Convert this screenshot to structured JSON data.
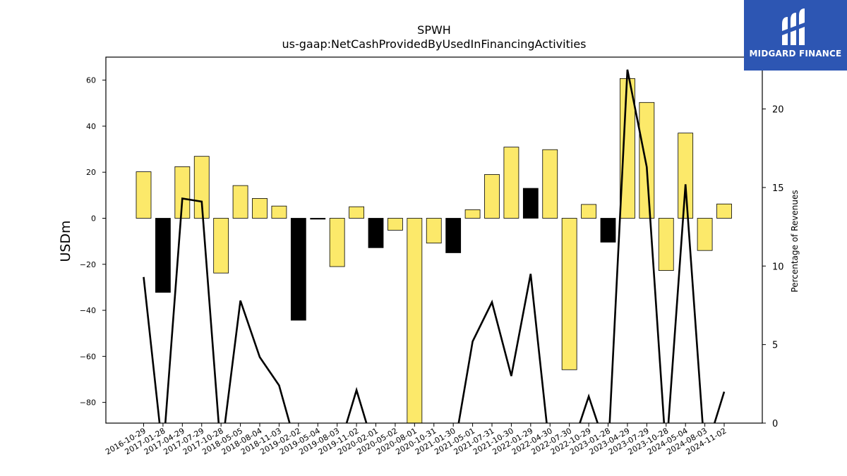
{
  "chart_data": {
    "type": "bar",
    "title": "SPWH",
    "subtitle": "us-gaap:NetCashProvidedByUsedInFinancingActivities",
    "ylabel": "USDm",
    "y2label": "Percentage of Revenues",
    "ylim": [
      -89,
      70
    ],
    "y2lim": [
      0,
      23.3
    ],
    "yticks": [
      60,
      40,
      20,
      0,
      -20,
      -40,
      -60,
      -80
    ],
    "y2ticks": [
      0,
      5,
      10,
      15,
      20
    ],
    "categories": [
      "2016-10-29",
      "2017-01-28",
      "2017-04-29",
      "2017-07-29",
      "2017-10-28",
      "2018-05-05",
      "2018-08-04",
      "2018-11-03",
      "2019-02-02",
      "2019-05-04",
      "2019-08-03",
      "2019-11-02",
      "2020-02-01",
      "2020-05-02",
      "2020-08-01",
      "2020-10-31",
      "2021-01-30",
      "2021-05-01",
      "2021-07-31",
      "2021-10-30",
      "2022-01-29",
      "2022-04-30",
      "2022-07-30",
      "2022-10-29",
      "2023-01-28",
      "2023-04-29",
      "2023-07-29",
      "2023-10-28",
      "2024-05-04",
      "2024-08-03",
      "2024-11-02"
    ],
    "series": [
      {
        "values": [
          20.2,
          -32.2,
          22.4,
          26.9,
          -23.8,
          14.2,
          8.6,
          5.3,
          -44.3,
          -0.4,
          -21.0,
          5.0,
          -12.8,
          -5.2,
          -89.0,
          -10.8,
          -15.0,
          3.7,
          19.0,
          30.9,
          13.0,
          29.8,
          -65.8,
          6.0,
          -10.4,
          60.7,
          50.3,
          -22.7,
          37.0,
          -14.0,
          6.2
        ],
        "colors": [
          "yellow",
          "black",
          "yellow",
          "yellow",
          "yellow",
          "yellow",
          "yellow",
          "yellow",
          "black",
          "black",
          "yellow",
          "yellow",
          "black",
          "yellow",
          "yellow",
          "yellow",
          "black",
          "yellow",
          "yellow",
          "yellow",
          "black",
          "yellow",
          "yellow",
          "yellow",
          "black",
          "yellow",
          "yellow",
          "yellow",
          "yellow",
          "yellow",
          "yellow"
        ]
      },
      {
        "values": [
          9.3,
          -2.0,
          14.3,
          14.1,
          -2.0,
          7.8,
          4.2,
          2.4,
          -2.0,
          -2.0,
          -2.0,
          2.1,
          -2.0,
          -2.0,
          -2.0,
          -2.0,
          -2.0,
          5.2,
          7.7,
          3.0,
          9.5,
          -2.0,
          -2.0,
          1.7,
          -2.0,
          22.5,
          16.3,
          -2.0,
          15.2,
          -2.0,
          2.0
        ]
      }
    ],
    "grid": false,
    "bar_colors": {
      "yellow": "#fce96a",
      "black": "#000000",
      "edge": "#000000"
    }
  },
  "logo": {
    "text": "MIDGARD FINANCE",
    "background": "#2d56b3"
  }
}
